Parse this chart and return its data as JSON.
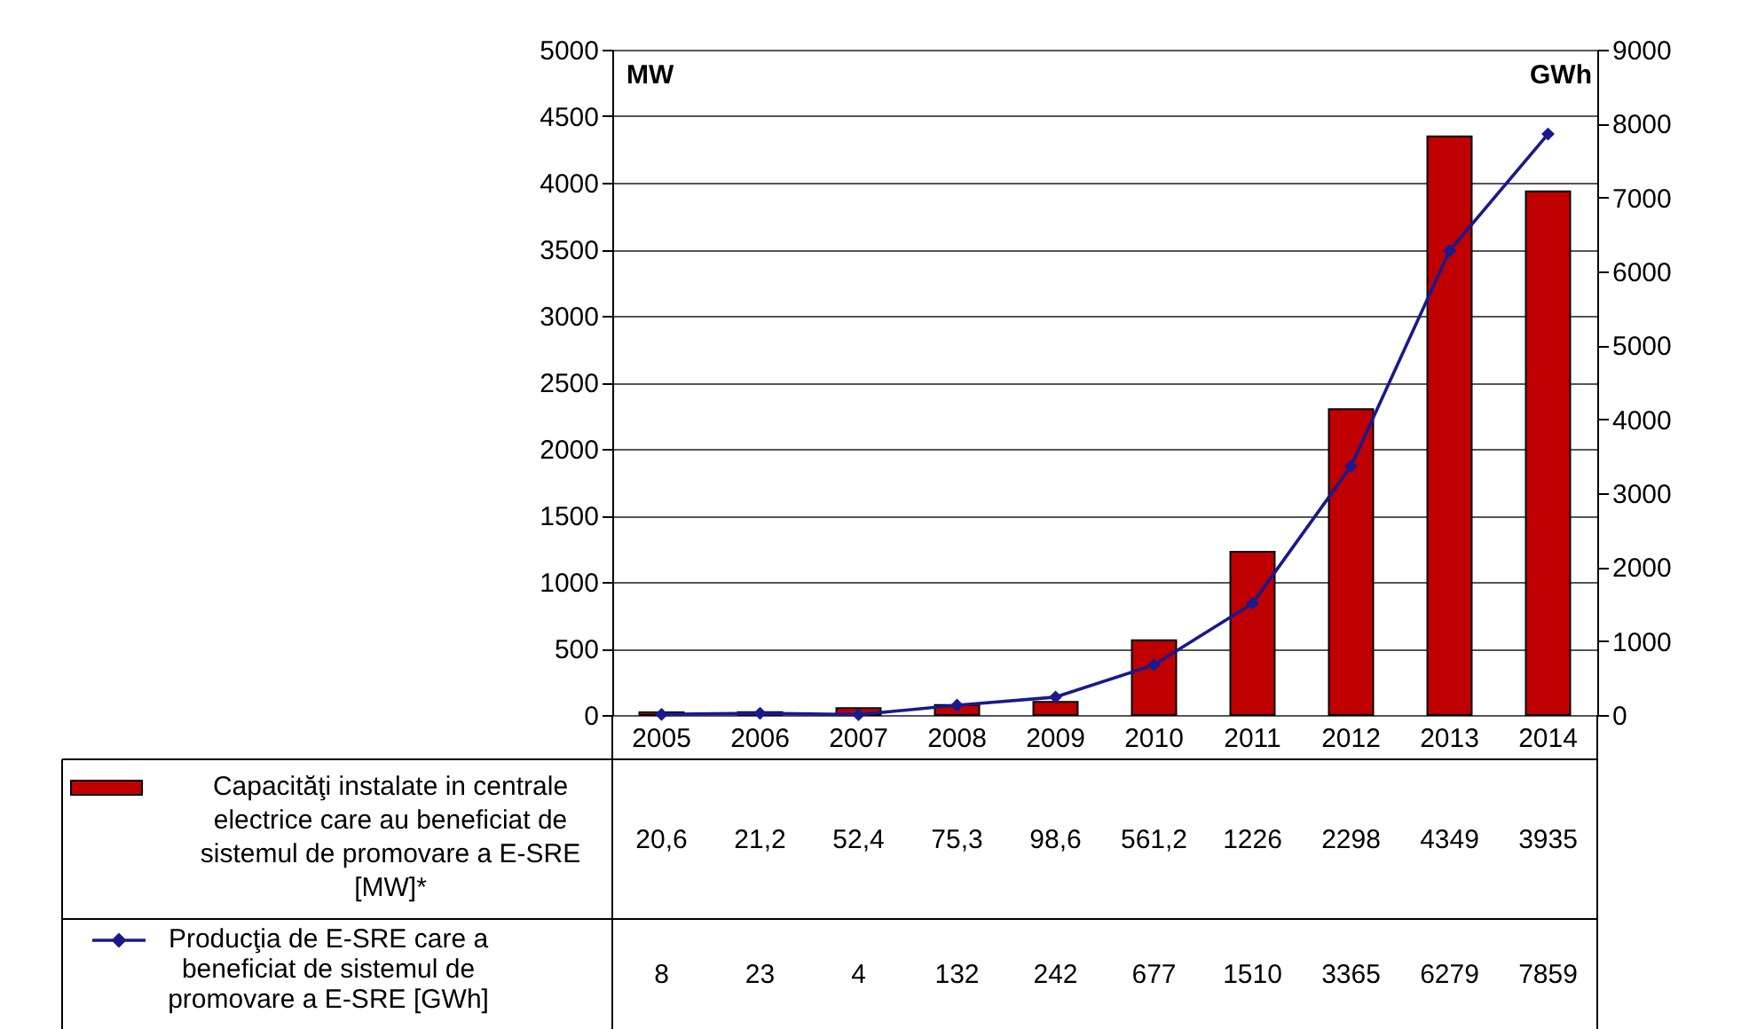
{
  "chart_data": {
    "type": "bar",
    "categories": [
      "2005",
      "2006",
      "2007",
      "2008",
      "2009",
      "2010",
      "2011",
      "2012",
      "2013",
      "2014"
    ],
    "series": [
      {
        "name": "Capacităţi instalate in centrale electrice care au beneficiat de sistemul de promovare a E-SRE [MW]*",
        "color": "#c00000",
        "values": [
          20.6,
          21.2,
          52.4,
          75.3,
          98.6,
          561.2,
          1226,
          2298,
          4349,
          3935
        ],
        "value_labels": [
          "20,6",
          "21,2",
          "52,4",
          "75,3",
          "98,6",
          "561,2",
          "1226",
          "2298",
          "4349",
          "3935"
        ]
      },
      {
        "name": "Producţia de E-SRE care a beneficiat de sistemul de promovare a E-SRE [GWh]",
        "type": "line",
        "axis": "y2",
        "color": "#1a1a8c",
        "values": [
          8,
          23,
          4,
          132,
          242,
          677,
          1510,
          3365,
          6279,
          7859
        ],
        "value_labels": [
          "8",
          "23",
          "4",
          "132",
          "242",
          "677",
          "1510",
          "3365",
          "6279",
          "7859"
        ]
      }
    ],
    "ylabel": "MW",
    "y2label": "GWh",
    "ylim": [
      0,
      5000
    ],
    "yticks": [
      0,
      500,
      1000,
      1500,
      2000,
      2500,
      3000,
      3500,
      4000,
      4500,
      5000
    ],
    "y2lim": [
      0,
      9000
    ],
    "y2ticks": [
      0,
      1000,
      2000,
      3000,
      4000,
      5000,
      6000,
      7000,
      8000,
      9000
    ],
    "grid": "y",
    "legend": "bottom",
    "marker": "diamond",
    "line_style": "solid"
  }
}
